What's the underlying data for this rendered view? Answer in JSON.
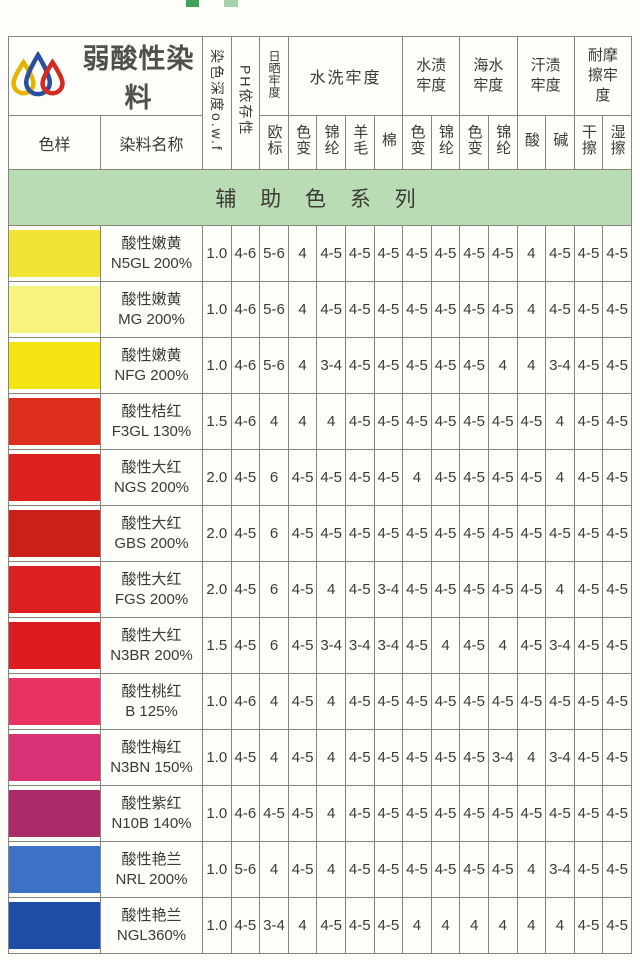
{
  "brand": {
    "title": "弱酸性染料",
    "logo_colors": {
      "yellow": "#e6b400",
      "blue": "#2b4fa0",
      "red": "#d42a20"
    }
  },
  "print_marks": {
    "color_dark": "#3fa254",
    "color_light": "#a3d4ab"
  },
  "header": {
    "col_sample": "色样",
    "col_name": "染料名称",
    "col_depth": "染色深度o.w.f",
    "col_ph": "PH依存性",
    "light_title": "日晒牢度",
    "light_sub": "欧标",
    "wash_title": "水洗牢度",
    "wash_subs": [
      "色变",
      "锦纶",
      "羊毛",
      "棉"
    ],
    "water_title": "水渍牢度",
    "water_subs": [
      "色变",
      "锦纶"
    ],
    "sea_title": "海水牢度",
    "sea_subs": [
      "色变",
      "锦纶"
    ],
    "sweat_title": "汗渍牢度",
    "sweat_subs": [
      "酸",
      "碱"
    ],
    "rub_title": "耐摩擦牢度",
    "rub_subs": [
      "干擦",
      "湿擦"
    ]
  },
  "banner": {
    "label": "辅 助 色 系 列",
    "background": "#b9dcb4"
  },
  "rows": [
    {
      "swatch": "#f2e432",
      "name_cn": "酸性嫩黄",
      "name_code": "N5GL 200%",
      "values": [
        "1.0",
        "4-6",
        "5-6",
        "4",
        "4-5",
        "4-5",
        "4-5",
        "4-5",
        "4-5",
        "4-5",
        "4-5",
        "4",
        "4-5",
        "4-5",
        "4-5"
      ]
    },
    {
      "swatch": "#f6f37e",
      "name_cn": "酸性嫩黄",
      "name_code": "MG 200%",
      "values": [
        "1.0",
        "4-6",
        "5-6",
        "4",
        "4-5",
        "4-5",
        "4-5",
        "4-5",
        "4-5",
        "4-5",
        "4-5",
        "4",
        "4-5",
        "4-5",
        "4-5"
      ]
    },
    {
      "swatch": "#f4e414",
      "name_cn": "酸性嫩黄",
      "name_code": "NFG 200%",
      "values": [
        "1.0",
        "4-6",
        "5-6",
        "4",
        "3-4",
        "4-5",
        "4-5",
        "4-5",
        "4-5",
        "4-5",
        "4",
        "4",
        "3-4",
        "4-5",
        "4-5"
      ]
    },
    {
      "swatch": "#dd2d1c",
      "name_cn": "酸性桔红",
      "name_code": "F3GL 130%",
      "values": [
        "1.5",
        "4-6",
        "4",
        "4",
        "4",
        "4-5",
        "4-5",
        "4-5",
        "4-5",
        "4-5",
        "4-5",
        "4-5",
        "4",
        "4-5",
        "4-5"
      ]
    },
    {
      "swatch": "#dc201c",
      "name_cn": "酸性大红",
      "name_code": "NGS 200%",
      "values": [
        "2.0",
        "4-5",
        "6",
        "4-5",
        "4-5",
        "4-5",
        "4-5",
        "4",
        "4-5",
        "4-5",
        "4-5",
        "4-5",
        "4",
        "4-5",
        "4-5"
      ]
    },
    {
      "swatch": "#c92019",
      "name_cn": "酸性大红",
      "name_code": "GBS 200%",
      "values": [
        "2.0",
        "4-5",
        "6",
        "4-5",
        "4-5",
        "4-5",
        "4-5",
        "4-5",
        "4-5",
        "4-5",
        "4-5",
        "4-5",
        "4-5",
        "4-5",
        "4-5"
      ]
    },
    {
      "swatch": "#dc1f20",
      "name_cn": "酸性大红",
      "name_code": "FGS 200%",
      "values": [
        "2.0",
        "4-5",
        "6",
        "4-5",
        "4",
        "4-5",
        "3-4",
        "4-5",
        "4-5",
        "4-5",
        "4-5",
        "4-5",
        "4",
        "4-5",
        "4-5"
      ]
    },
    {
      "swatch": "#dc1a20",
      "name_cn": "酸性大红",
      "name_code": "N3BR 200%",
      "values": [
        "1.5",
        "4-5",
        "6",
        "4-5",
        "3-4",
        "3-4",
        "3-4",
        "4-5",
        "4",
        "4-5",
        "4",
        "4-5",
        "3-4",
        "4-5",
        "4-5"
      ]
    },
    {
      "swatch": "#e93264",
      "name_cn": "酸性桃红",
      "name_code": "B 125%",
      "values": [
        "1.0",
        "4-6",
        "4",
        "4-5",
        "4",
        "4-5",
        "4-5",
        "4-5",
        "4-5",
        "4-5",
        "4-5",
        "4-5",
        "4-5",
        "4-5",
        "4-5"
      ]
    },
    {
      "swatch": "#da3076",
      "name_cn": "酸性梅红",
      "name_code": "N3BN 150%",
      "values": [
        "1.0",
        "4-5",
        "4",
        "4-5",
        "4",
        "4-5",
        "4-5",
        "4-5",
        "4-5",
        "4-5",
        "3-4",
        "4",
        "3-4",
        "4-5",
        "4-5"
      ]
    },
    {
      "swatch": "#ab2a68",
      "name_cn": "酸性紫红",
      "name_code": "N10B 140%",
      "values": [
        "1.0",
        "4-6",
        "4-5",
        "4-5",
        "4",
        "4-5",
        "4-5",
        "4-5",
        "4-5",
        "4-5",
        "4-5",
        "4-5",
        "4-5",
        "4-5",
        "4-5"
      ]
    },
    {
      "swatch": "#3c72c6",
      "name_cn": "酸性艳兰",
      "name_code": "NRL 200%",
      "values": [
        "1.0",
        "5-6",
        "4",
        "4-5",
        "4",
        "4-5",
        "4-5",
        "4-5",
        "4-5",
        "4-5",
        "4-5",
        "4",
        "3-4",
        "4-5",
        "4-5"
      ]
    },
    {
      "swatch": "#1d4da6",
      "name_cn": "酸性艳兰",
      "name_code": "NGL360%",
      "values": [
        "1.0",
        "4-5",
        "3-4",
        "4",
        "4-5",
        "4-5",
        "4-5",
        "4",
        "4",
        "4",
        "4",
        "4",
        "4",
        "4-5",
        "4-5"
      ]
    }
  ]
}
